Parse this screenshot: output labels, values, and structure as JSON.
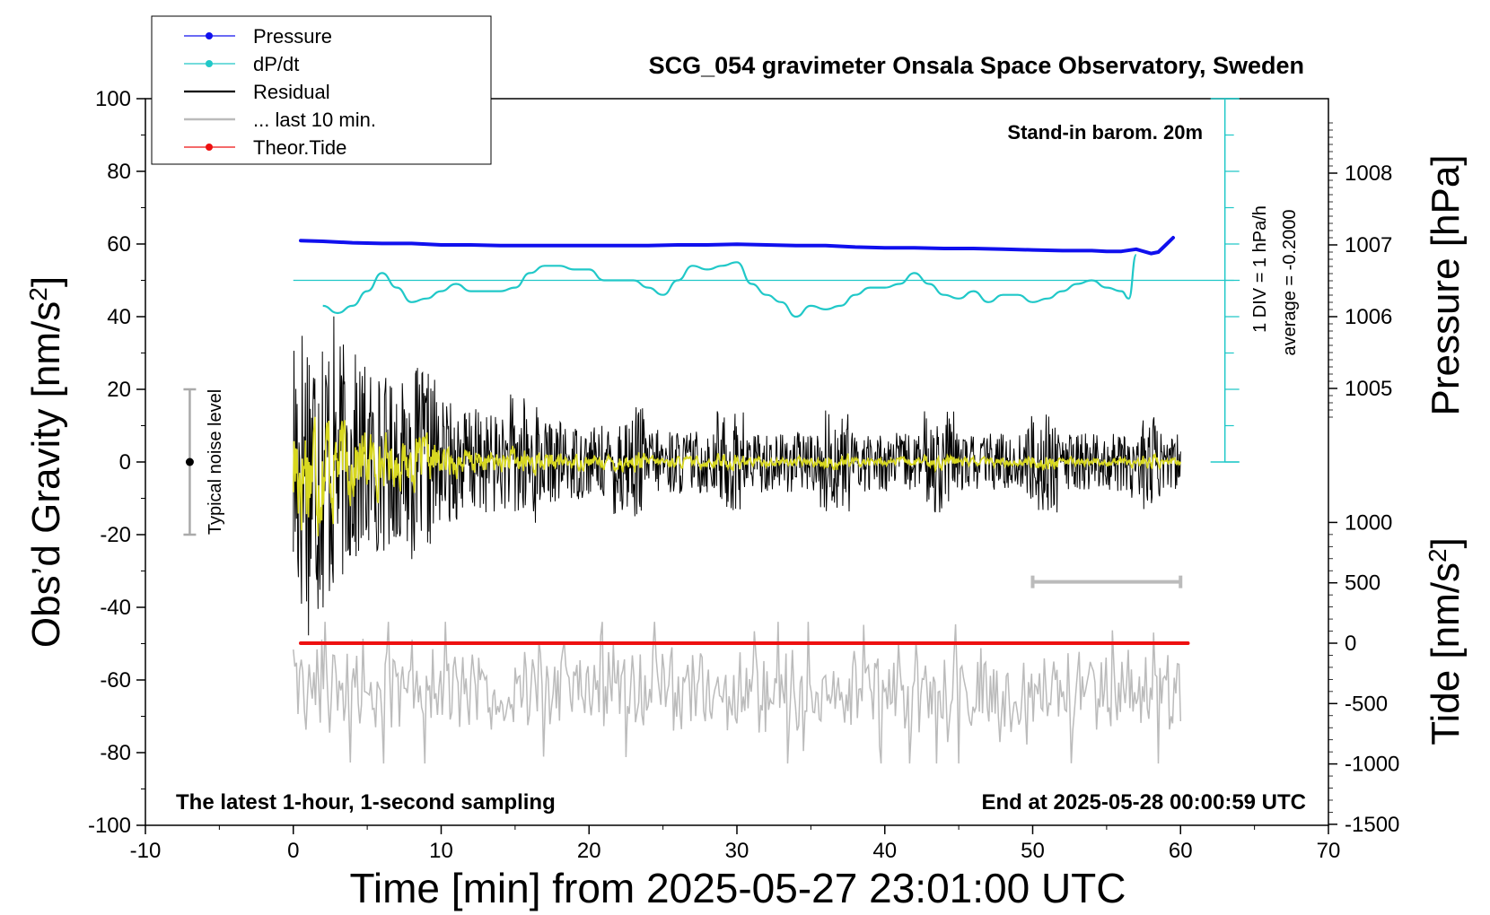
{
  "chart_data": {
    "type": "line",
    "title": "SCG_054 gravimeter Onsala Space Observatory, Sweden",
    "xlabel": "Time [min] from 2025-05-27 23:01:00 UTC",
    "ylabel_left": "Obs’d Gravity [nm/s²]",
    "ylabel_right_pressure": "Pressure [hPa]",
    "ylabel_right_tide": "Tide [nm/s²]",
    "xlim": [
      -10,
      70
    ],
    "ylim": [
      -100,
      100
    ],
    "x_ticks": [
      "-10",
      "0",
      "10",
      "20",
      "30",
      "40",
      "50",
      "60",
      "70"
    ],
    "y_ticks": [
      "100",
      "80",
      "60",
      "40",
      "20",
      "0",
      "-20",
      "-40",
      "-60",
      "-80",
      "-100"
    ],
    "pressure_ticks": [
      "1008",
      "1007",
      "1006",
      "1005"
    ],
    "tide_ticks": [
      "1000",
      "500",
      "0",
      "-500",
      "-1000",
      "-1500"
    ],
    "grid": false,
    "legend_position": "top-left",
    "legend": [
      {
        "name": "Pressure",
        "color": "#1010ee"
      },
      {
        "name": "dP/dt",
        "color": "#20c8c8"
      },
      {
        "name": "Residual",
        "color": "#000000"
      },
      {
        "name": "... last 10 min.",
        "color": "#bbbbbb"
      },
      {
        "name": "Theor.Tide",
        "color": "#ee1010"
      }
    ],
    "annotations": {
      "barometer": "Stand-in barom. 20m",
      "dpdt_scale": "1 DIV = 1 hPa/h",
      "dpdt_average": "average = -0.2000",
      "noise_label": "Typical noise level",
      "bottom_left": "The latest 1-hour, 1-second sampling",
      "bottom_right": "End at 2025-05-28 00:00:59 UTC"
    },
    "noise_level": {
      "x": -7,
      "center": 0,
      "range": [
        -20,
        20
      ]
    },
    "last10_marker": {
      "x": [
        50,
        60
      ],
      "y": -33
    },
    "series": [
      {
        "name": "Pressure",
        "units": "hPa",
        "x": [
          0.5,
          2,
          4,
          6,
          8,
          10,
          12,
          14,
          16,
          18,
          20,
          22,
          24,
          26,
          28,
          30,
          32,
          34,
          36,
          38,
          40,
          42,
          44,
          46,
          48,
          50,
          52,
          54,
          55,
          56,
          57,
          58,
          58.5,
          59,
          59.5
        ],
        "values": [
          1007.06,
          1007.05,
          1007.03,
          1007.02,
          1007.02,
          1007.0,
          1007.0,
          1006.99,
          1006.99,
          1006.99,
          1006.99,
          1006.99,
          1006.99,
          1007.0,
          1007.0,
          1007.01,
          1007.0,
          1006.99,
          1006.99,
          1006.97,
          1006.96,
          1006.96,
          1006.95,
          1006.95,
          1006.94,
          1006.93,
          1006.92,
          1006.92,
          1006.91,
          1006.91,
          1006.94,
          1006.88,
          1006.9,
          1007.0,
          1007.1
        ]
      },
      {
        "name": "dP/dt",
        "units": "gravity-axis nm/s²",
        "x": [
          2,
          3,
          4,
          5,
          6,
          7,
          8,
          9,
          10,
          11,
          12,
          13,
          14,
          15,
          16,
          17,
          18,
          19,
          20,
          21,
          22,
          23,
          24,
          25,
          26,
          27,
          28,
          29,
          30,
          31,
          32,
          33,
          34,
          35,
          36,
          37,
          38,
          39,
          40,
          41,
          42,
          43,
          44,
          45,
          46,
          47,
          48,
          49,
          50,
          51,
          52,
          53,
          54,
          55,
          56,
          56.5,
          57
        ],
        "values": [
          43,
          41,
          43,
          47,
          52,
          48,
          44,
          45,
          47,
          49,
          47,
          47,
          47,
          48,
          52,
          54,
          54,
          53,
          53,
          50,
          50,
          50,
          48,
          46,
          50,
          54,
          53,
          54,
          55,
          49,
          46,
          44,
          40,
          43,
          42,
          43,
          46,
          48,
          48,
          49,
          52,
          49,
          46,
          45,
          47,
          44,
          46,
          46,
          44,
          45,
          47,
          49,
          50,
          48,
          47,
          45,
          57
        ]
      },
      {
        "name": "Residual",
        "seed": 17,
        "x_range": [
          0,
          60
        ],
        "center": 0
      },
      {
        "name": "... last 10 min.",
        "seed": 29,
        "x_range": [
          0,
          60
        ],
        "center": -63
      },
      {
        "name": "Theor.Tide",
        "x": [
          0.5,
          60.5
        ],
        "values": [
          0,
          0
        ],
        "units": "nm/s² (tide axis)"
      }
    ]
  }
}
